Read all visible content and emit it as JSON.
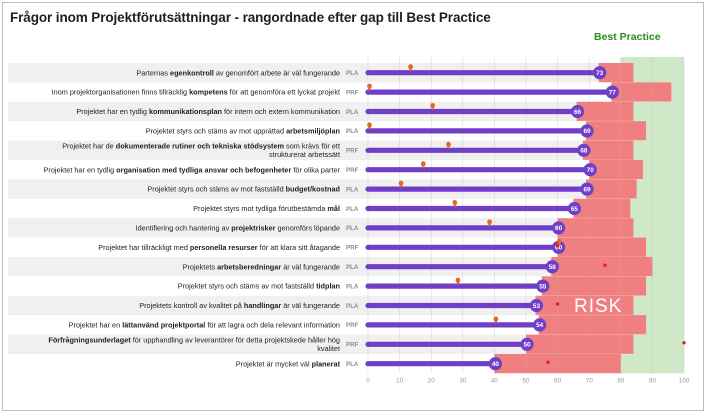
{
  "title": "Frågor inom Projektförutsättningar - rangordnade efter gap till Best Practice",
  "best_practice_label": "Best Practice",
  "risk_label": "RISK",
  "colors": {
    "bar": "#6f3fc8",
    "risk": "#f08080",
    "best_practice": "#cfe8c8",
    "marker": "#e06a2a",
    "stripe": "#f0f0f0",
    "red_dot": "#e02020"
  },
  "chart_data": {
    "type": "bar",
    "orientation": "horizontal",
    "title": "Frågor inom Projektförutsättningar - rangordnade efter gap till Best Practice",
    "xlim": [
      0,
      100
    ],
    "xticks": [
      "0",
      "10",
      "20",
      "30",
      "40",
      "50",
      "60",
      "70",
      "80",
      "90",
      "100"
    ],
    "rows": [
      {
        "question": [
          {
            "t": "Parternas "
          },
          {
            "t": "egenkontroll",
            "b": true
          },
          {
            "t": " av genomfört arbete är väl fungerande"
          }
        ],
        "category": "PLA",
        "value": 73,
        "marker": 13,
        "risk_upper": 84,
        "red_dot": null
      },
      {
        "question": [
          {
            "t": "Inom projektorganisationen finns tillräcklig "
          },
          {
            "t": "kompetens",
            "b": true
          },
          {
            "t": " för att genomföra ett lyckat projekt"
          }
        ],
        "category": "PRF",
        "value": 77,
        "marker": 0,
        "risk_upper": 96,
        "red_dot": null
      },
      {
        "question": [
          {
            "t": "Projektet har en tydlig "
          },
          {
            "t": "kommunikationsplan",
            "b": true
          },
          {
            "t": " för intern och extern kommunikation"
          }
        ],
        "category": "PLA",
        "value": 66,
        "marker": 20,
        "risk_upper": 84,
        "red_dot": null
      },
      {
        "question": [
          {
            "t": "Projektet styrs och stäms av mot upprättad "
          },
          {
            "t": "arbetsmiljöplan",
            "b": true
          }
        ],
        "category": "PLA",
        "value": 69,
        "marker": 0,
        "risk_upper": 88,
        "red_dot": null
      },
      {
        "question": [
          [
            {
              "t": "Projektet har de "
            },
            {
              "t": "dokumenterade rutiner och tekniska stödsystem",
              "b": true
            },
            {
              "t": " som krävs för ett"
            }
          ],
          [
            {
              "t": "strukturerat arbetssätt"
            }
          ]
        ],
        "category": "PRF",
        "value": 68,
        "marker": 25,
        "risk_upper": 84,
        "red_dot": null
      },
      {
        "question": [
          {
            "t": "Projektet har en tydlig "
          },
          {
            "t": "organisation med tydliga ansvar och befogenheter",
            "b": true
          },
          {
            "t": " för olika parter"
          }
        ],
        "category": "PRF",
        "value": 70,
        "marker": 17,
        "risk_upper": 87,
        "red_dot": null
      },
      {
        "question": [
          {
            "t": "Projektet styrs och stäms av mot fastställd "
          },
          {
            "t": "budget/kostnad",
            "b": true
          }
        ],
        "category": "PLA",
        "value": 69,
        "marker": 10,
        "risk_upper": 85,
        "red_dot": null
      },
      {
        "question": [
          {
            "t": "Projektet styrs mot tydliga förutbestämda "
          },
          {
            "t": "mål",
            "b": true
          }
        ],
        "category": "PLA",
        "value": 65,
        "marker": 27,
        "risk_upper": 83,
        "red_dot": null
      },
      {
        "question": [
          {
            "t": "Identifiering och hantering av "
          },
          {
            "t": "projektrisker",
            "b": true
          },
          {
            "t": " genomförs löpande"
          }
        ],
        "category": "PLA",
        "value": 60,
        "marker": 38,
        "risk_upper": 84,
        "red_dot": null
      },
      {
        "question": [
          {
            "t": "Projektet har tillräckligt med "
          },
          {
            "t": "personella resurser",
            "b": true
          },
          {
            "t": " för att klara sitt åtagande"
          }
        ],
        "category": "PRF",
        "value": 60,
        "marker": 60,
        "risk_upper": 88,
        "red_dot": 60
      },
      {
        "question": [
          {
            "t": "Projektets "
          },
          {
            "t": "arbetsberedningar",
            "b": true
          },
          {
            "t": " är väl fungerande"
          }
        ],
        "category": "PLA",
        "value": 58,
        "marker": null,
        "risk_upper": 90,
        "red_dot": 75
      },
      {
        "question": [
          {
            "t": "Projektet styrs och stäms av mot fastställd "
          },
          {
            "t": "tidplan",
            "b": true
          }
        ],
        "category": "PLA",
        "value": 55,
        "marker": 28,
        "risk_upper": 88,
        "red_dot": null
      },
      {
        "question": [
          {
            "t": "Projektets kontroll av kvalitet på "
          },
          {
            "t": "handlingar",
            "b": true
          },
          {
            "t": " är väl fungerande"
          }
        ],
        "category": "PLA",
        "value": 53,
        "marker": null,
        "risk_upper": 84,
        "red_dot": 60
      },
      {
        "question": [
          {
            "t": "Projektet har en "
          },
          {
            "t": "lättanvänd projektportal",
            "b": true
          },
          {
            "t": " för att lagra och dela relevant information"
          }
        ],
        "category": "PRF",
        "value": 54,
        "marker": 40,
        "risk_upper": 88,
        "red_dot": null
      },
      {
        "question": [
          [
            {
              "t": "Förfrågningsunderlaget",
              "b": true
            },
            {
              "t": " för upphandling av leverantörer för detta projektskede håller hög"
            }
          ],
          [
            {
              "t": "kvalitet"
            }
          ]
        ],
        "category": "PRF",
        "value": 50,
        "marker": null,
        "risk_upper": 84,
        "red_dot": 100
      },
      {
        "question": [
          {
            "t": "Projektet är mycket väl "
          },
          {
            "t": "planerat",
            "b": true
          }
        ],
        "category": "PLA",
        "value": 40,
        "marker": null,
        "risk_upper": 80,
        "red_dot": 57
      }
    ]
  }
}
